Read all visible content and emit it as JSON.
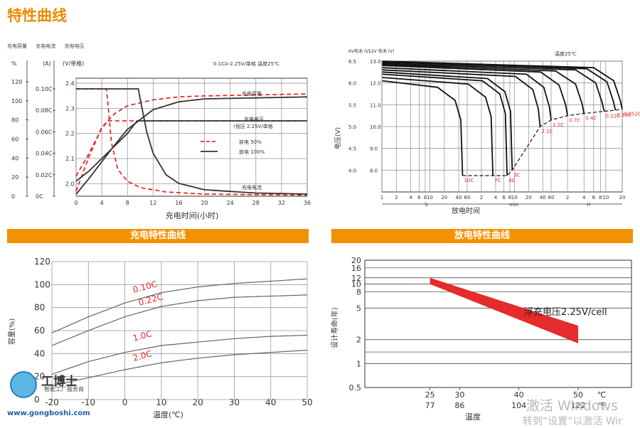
{
  "page_title": "特性曲线",
  "top_legend": [
    "充电容量",
    "充电电流",
    "充电电压"
  ],
  "section_labels": {
    "charge": "充电特性曲线",
    "discharge": "放电特性曲线"
  },
  "watermark": {
    "line1": "激活 Windows",
    "line2": "转到“设置”以激活 Wir"
  },
  "logo": {
    "brand": "工博士",
    "sub": "智能工厂服务商",
    "url": "www.gongboshi.com"
  },
  "colors": {
    "accent": "#f39200",
    "red": "#e52b2b",
    "dark": "#333333",
    "grid": "#999999"
  },
  "chart_data": [
    {
      "id": "charge",
      "type": "line",
      "title": "0.1CA-2.25V/单格   温度25℃",
      "xlabel": "充电时间(小时)",
      "axis_headers": [
        "%",
        "(A)",
        "(V/单格)"
      ],
      "xticks": [
        0,
        4,
        8,
        12,
        16,
        20,
        24,
        28,
        32,
        36
      ],
      "pct_ticks": [
        "0",
        "20",
        "40",
        "60",
        "80",
        "100",
        "120"
      ],
      "amp_ticks": [
        "0C",
        "0.02C",
        "0.04C",
        "0.06C",
        "0.08C",
        "0.10C"
      ],
      "volt_ticks": [
        "2.0",
        "2.1",
        "2.2",
        "2.3",
        "2.4"
      ],
      "annotations": [
        "充电容量",
        "充电电压",
        "(恒压 2.25V/单格",
        "充电电流"
      ],
      "legend": [
        {
          "name": "放电 50%",
          "style": "dashed",
          "color": "#e52b2b"
        },
        {
          "name": "放电 100%",
          "style": "solid",
          "color": "#333333"
        }
      ],
      "series": [
        {
          "name": "放电 50%",
          "quantity": "capacity",
          "x": [
            0,
            2,
            4,
            6,
            8,
            12,
            16,
            20,
            28,
            36
          ],
          "y": [
            5,
            40,
            70,
            84,
            92,
            98,
            101,
            102,
            103,
            104
          ]
        },
        {
          "name": "放电 100%",
          "quantity": "capacity",
          "x": [
            0,
            2,
            4,
            6,
            8,
            12,
            16,
            20,
            28,
            36
          ],
          "y": [
            2,
            18,
            35,
            52,
            68,
            88,
            96,
            99,
            100,
            101
          ]
        },
        {
          "name": "放电 50%",
          "quantity": "voltage",
          "x": [
            0,
            2,
            4,
            5,
            6,
            10,
            20,
            36
          ],
          "y": [
            2.03,
            2.12,
            2.22,
            2.25,
            2.25,
            2.25,
            2.25,
            2.25
          ]
        },
        {
          "name": "放电 100%",
          "quantity": "voltage",
          "x": [
            0,
            2,
            4,
            6,
            8,
            9.5,
            12,
            20,
            36
          ],
          "y": [
            2.01,
            2.05,
            2.1,
            2.15,
            2.2,
            2.25,
            2.25,
            2.25,
            2.25
          ]
        },
        {
          "name": "放电 50%",
          "quantity": "current",
          "x": [
            0,
            4.7,
            4.9,
            5.5,
            6.5,
            8,
            10,
            14,
            20,
            36
          ],
          "y": [
            0.1,
            0.1,
            0.09,
            0.05,
            0.025,
            0.014,
            0.008,
            0.004,
            0.002,
            0.001
          ]
        },
        {
          "name": "放电 100%",
          "quantity": "current",
          "x": [
            0,
            9.7,
            10,
            11,
            12,
            14,
            16,
            20,
            28,
            36
          ],
          "y": [
            0.1,
            0.1,
            0.09,
            0.06,
            0.04,
            0.02,
            0.012,
            0.006,
            0.003,
            0.002
          ]
        }
      ]
    },
    {
      "id": "discharge",
      "type": "line",
      "axis_headers": [
        "6V电池\n(V)",
        "12V 电池\n(V)"
      ],
      "temperature": "温度25℃",
      "ylabel": "电压(V)",
      "xlabel": "放电时间",
      "yticks_6v": [
        "4.0",
        "4.5",
        "5.0",
        "5.5",
        "6.0",
        "6.5"
      ],
      "yticks_12v": [
        "8.0",
        "9.0",
        "10.0",
        "11.0",
        "12.0",
        "13.0"
      ],
      "xticks": [
        "1",
        "2",
        "4",
        "6",
        "8",
        "10",
        "20",
        "40",
        "60",
        "2",
        "4",
        "6",
        "8",
        "10",
        "20",
        "40",
        "60",
        "2",
        "4",
        "6",
        "8",
        "10",
        "20"
      ],
      "x_units": [
        "S",
        "min",
        "H"
      ],
      "rates": [
        "10C",
        "7C",
        "4C",
        "3C",
        "2.1C",
        "1.2C",
        "0.7C",
        "0.4C",
        "0.22C",
        "0.10C",
        "0.052C"
      ],
      "end_voltage_12v": [
        7.75,
        7.75,
        7.75,
        8.0,
        10.0,
        10.3,
        10.5,
        10.6,
        10.7,
        10.75,
        10.8
      ],
      "cutoff_minutes": [
        0.8,
        3.5,
        7,
        9,
        35,
        60,
        120,
        240,
        560,
        900,
        1200
      ]
    },
    {
      "id": "capacity_temp",
      "type": "line",
      "ylabel": "容量(%)",
      "xlabel": "温度(℃)",
      "xticks": [
        "-20",
        "-10",
        "0",
        "10",
        "20",
        "30",
        "40",
        "50"
      ],
      "yticks": [
        "0",
        "20",
        "40",
        "60",
        "80",
        "100",
        "120"
      ],
      "xlim": [
        -20,
        50
      ],
      "ylim": [
        0,
        120
      ],
      "series": [
        {
          "name": "0.10C",
          "x": [
            -20,
            -10,
            0,
            10,
            20,
            30,
            40,
            50
          ],
          "y": [
            58,
            72,
            84,
            93,
            98,
            101,
            103,
            105
          ]
        },
        {
          "name": "0.22C",
          "x": [
            -20,
            -10,
            0,
            10,
            20,
            30,
            40,
            50
          ],
          "y": [
            47,
            60,
            72,
            81,
            86,
            89,
            90,
            91
          ]
        },
        {
          "name": "1.0C",
          "x": [
            -20,
            -10,
            0,
            10,
            20,
            30,
            40,
            50
          ],
          "y": [
            22,
            33,
            41,
            47,
            50,
            53,
            55,
            56
          ]
        },
        {
          "name": "2.0C",
          "x": [
            -20,
            -10,
            0,
            10,
            20,
            30,
            40,
            50
          ],
          "y": [
            12,
            19,
            26,
            32,
            36,
            39,
            41,
            43
          ]
        }
      ]
    },
    {
      "id": "life_temp",
      "type": "area",
      "ylabel": "设计寿命(年)",
      "xlabel": "温度",
      "annotation": "浮充电压2.25V/cell",
      "yticks": [
        "0.5",
        "1",
        "2",
        "5",
        "8",
        "10",
        "12",
        "16",
        "20"
      ],
      "xticks_c": [
        "25",
        "30",
        "40",
        "50"
      ],
      "xticks_f": [
        "77",
        "86",
        "104",
        "122"
      ],
      "unit_c": "℃",
      "unit_f": "℉",
      "band": {
        "x": [
          25,
          50
        ],
        "upper": [
          12,
          3
        ],
        "lower": [
          10,
          1.8
        ]
      }
    }
  ]
}
